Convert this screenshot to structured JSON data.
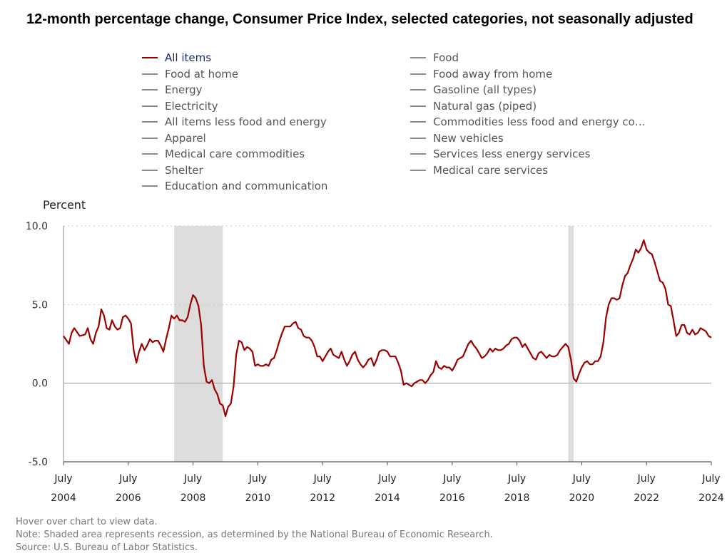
{
  "title": "12-month percentage change, Consumer Price Index, selected categories, not seasonally adjusted",
  "legend": {
    "left": [
      "All items",
      "Food at home",
      "Energy",
      "Electricity",
      "All items less food and energy",
      "Apparel",
      "Medical care commodities",
      "Shelter",
      "Education and communication"
    ],
    "right": [
      "Food",
      "Food away from home",
      "Gasoline (all types)",
      "Natural gas (piped)",
      "Commodities less food and energy com...",
      "New vehicles",
      "Services less energy services",
      "Medical care services"
    ],
    "active": "All items"
  },
  "footer": {
    "hover": "Hover over chart to view data.",
    "note": "Note: Shaded area represents recession, as determined by the National Bureau of Economic Research.",
    "source": "Source: U.S. Bureau of Labor Statistics."
  },
  "chart_data": {
    "type": "line",
    "ylabel": "Percent",
    "ylim": [
      -5.0,
      10.0
    ],
    "yticks": [
      "10.0",
      "5.0",
      "0.0",
      "-5.0"
    ],
    "xlim": [
      "2004-07",
      "2024-07"
    ],
    "xtick_months": [
      "July",
      "July",
      "July",
      "July",
      "July",
      "July",
      "July",
      "July",
      "July",
      "July",
      "July"
    ],
    "xtick_years": [
      "2004",
      "2006",
      "2008",
      "2010",
      "2012",
      "2014",
      "2016",
      "2018",
      "2020",
      "2022",
      "2024"
    ],
    "grid": "horizontal dotted",
    "line_color": "#990000",
    "recession_color": "#dddddd",
    "recessions": [
      [
        "2007-12",
        "2009-06"
      ],
      [
        "2020-02",
        "2020-04"
      ]
    ],
    "series": [
      {
        "name": "All items",
        "points": [
          [
            "2004-07",
            3.0
          ],
          [
            "2004-09",
            2.5
          ],
          [
            "2004-10",
            3.2
          ],
          [
            "2004-11",
            3.5
          ],
          [
            "2005-01",
            3.0
          ],
          [
            "2005-03",
            3.1
          ],
          [
            "2005-04",
            3.5
          ],
          [
            "2005-05",
            2.8
          ],
          [
            "2005-06",
            2.5
          ],
          [
            "2005-07",
            3.2
          ],
          [
            "2005-08",
            3.6
          ],
          [
            "2005-09",
            4.7
          ],
          [
            "2005-10",
            4.3
          ],
          [
            "2005-11",
            3.5
          ],
          [
            "2005-12",
            3.4
          ],
          [
            "2006-01",
            4.0
          ],
          [
            "2006-02",
            3.6
          ],
          [
            "2006-03",
            3.4
          ],
          [
            "2006-04",
            3.5
          ],
          [
            "2006-05",
            4.2
          ],
          [
            "2006-06",
            4.3
          ],
          [
            "2006-07",
            4.1
          ],
          [
            "2006-08",
            3.8
          ],
          [
            "2006-09",
            2.1
          ],
          [
            "2006-10",
            1.3
          ],
          [
            "2006-11",
            2.0
          ],
          [
            "2006-12",
            2.5
          ],
          [
            "2007-01",
            2.1
          ],
          [
            "2007-02",
            2.4
          ],
          [
            "2007-03",
            2.8
          ],
          [
            "2007-04",
            2.6
          ],
          [
            "2007-05",
            2.7
          ],
          [
            "2007-06",
            2.7
          ],
          [
            "2007-07",
            2.4
          ],
          [
            "2007-08",
            2.0
          ],
          [
            "2007-09",
            2.8
          ],
          [
            "2007-10",
            3.5
          ],
          [
            "2007-11",
            4.3
          ],
          [
            "2007-12",
            4.1
          ],
          [
            "2008-01",
            4.3
          ],
          [
            "2008-02",
            4.0
          ],
          [
            "2008-03",
            4.0
          ],
          [
            "2008-04",
            3.9
          ],
          [
            "2008-05",
            4.2
          ],
          [
            "2008-06",
            5.0
          ],
          [
            "2008-07",
            5.6
          ],
          [
            "2008-08",
            5.4
          ],
          [
            "2008-09",
            4.9
          ],
          [
            "2008-10",
            3.7
          ],
          [
            "2008-11",
            1.1
          ],
          [
            "2008-12",
            0.1
          ],
          [
            "2009-01",
            0.0
          ],
          [
            "2009-02",
            0.2
          ],
          [
            "2009-03",
            -0.4
          ],
          [
            "2009-04",
            -0.7
          ],
          [
            "2009-05",
            -1.3
          ],
          [
            "2009-06",
            -1.4
          ],
          [
            "2009-07",
            -2.1
          ],
          [
            "2009-08",
            -1.5
          ],
          [
            "2009-09",
            -1.3
          ],
          [
            "2009-10",
            -0.2
          ],
          [
            "2009-11",
            1.8
          ],
          [
            "2009-12",
            2.7
          ],
          [
            "2010-01",
            2.6
          ],
          [
            "2010-02",
            2.1
          ],
          [
            "2010-03",
            2.3
          ],
          [
            "2010-04",
            2.2
          ],
          [
            "2010-05",
            2.0
          ],
          [
            "2010-06",
            1.1
          ],
          [
            "2010-07",
            1.2
          ],
          [
            "2010-08",
            1.1
          ],
          [
            "2010-09",
            1.1
          ],
          [
            "2010-10",
            1.2
          ],
          [
            "2010-11",
            1.1
          ],
          [
            "2010-12",
            1.5
          ],
          [
            "2011-01",
            1.6
          ],
          [
            "2011-02",
            2.1
          ],
          [
            "2011-03",
            2.7
          ],
          [
            "2011-04",
            3.2
          ],
          [
            "2011-05",
            3.6
          ],
          [
            "2011-06",
            3.6
          ],
          [
            "2011-07",
            3.6
          ],
          [
            "2011-08",
            3.8
          ],
          [
            "2011-09",
            3.9
          ],
          [
            "2011-10",
            3.5
          ],
          [
            "2011-11",
            3.4
          ],
          [
            "2011-12",
            3.0
          ],
          [
            "2012-01",
            2.9
          ],
          [
            "2012-02",
            2.9
          ],
          [
            "2012-03",
            2.7
          ],
          [
            "2012-04",
            2.3
          ],
          [
            "2012-05",
            1.7
          ],
          [
            "2012-06",
            1.7
          ],
          [
            "2012-07",
            1.4
          ],
          [
            "2012-08",
            1.7
          ],
          [
            "2012-09",
            2.0
          ],
          [
            "2012-10",
            2.2
          ],
          [
            "2012-11",
            1.8
          ],
          [
            "2012-12",
            1.7
          ],
          [
            "2013-01",
            1.6
          ],
          [
            "2013-02",
            2.0
          ],
          [
            "2013-03",
            1.5
          ],
          [
            "2013-04",
            1.1
          ],
          [
            "2013-05",
            1.4
          ],
          [
            "2013-06",
            1.8
          ],
          [
            "2013-07",
            2.0
          ],
          [
            "2013-08",
            1.5
          ],
          [
            "2013-09",
            1.2
          ],
          [
            "2013-10",
            1.0
          ],
          [
            "2013-11",
            1.2
          ],
          [
            "2013-12",
            1.5
          ],
          [
            "2014-01",
            1.6
          ],
          [
            "2014-02",
            1.1
          ],
          [
            "2014-03",
            1.5
          ],
          [
            "2014-04",
            2.0
          ],
          [
            "2014-05",
            2.1
          ],
          [
            "2014-06",
            2.1
          ],
          [
            "2014-07",
            2.0
          ],
          [
            "2014-08",
            1.7
          ],
          [
            "2014-09",
            1.7
          ],
          [
            "2014-10",
            1.7
          ],
          [
            "2014-11",
            1.3
          ],
          [
            "2014-12",
            0.8
          ],
          [
            "2015-01",
            -0.1
          ],
          [
            "2015-02",
            0.0
          ],
          [
            "2015-03",
            -0.1
          ],
          [
            "2015-04",
            -0.2
          ],
          [
            "2015-05",
            0.0
          ],
          [
            "2015-06",
            0.1
          ],
          [
            "2015-07",
            0.2
          ],
          [
            "2015-08",
            0.2
          ],
          [
            "2015-09",
            0.0
          ],
          [
            "2015-10",
            0.2
          ],
          [
            "2015-11",
            0.5
          ],
          [
            "2015-12",
            0.7
          ],
          [
            "2016-01",
            1.4
          ],
          [
            "2016-02",
            1.0
          ],
          [
            "2016-03",
            0.9
          ],
          [
            "2016-04",
            1.1
          ],
          [
            "2016-05",
            1.0
          ],
          [
            "2016-06",
            1.0
          ],
          [
            "2016-07",
            0.8
          ],
          [
            "2016-08",
            1.1
          ],
          [
            "2016-09",
            1.5
          ],
          [
            "2016-10",
            1.6
          ],
          [
            "2016-11",
            1.7
          ],
          [
            "2016-12",
            2.1
          ],
          [
            "2017-01",
            2.5
          ],
          [
            "2017-02",
            2.7
          ],
          [
            "2017-03",
            2.4
          ],
          [
            "2017-04",
            2.2
          ],
          [
            "2017-05",
            1.9
          ],
          [
            "2017-06",
            1.6
          ],
          [
            "2017-07",
            1.7
          ],
          [
            "2017-08",
            1.9
          ],
          [
            "2017-09",
            2.2
          ],
          [
            "2017-10",
            2.0
          ],
          [
            "2017-11",
            2.2
          ],
          [
            "2017-12",
            2.1
          ],
          [
            "2018-01",
            2.1
          ],
          [
            "2018-02",
            2.2
          ],
          [
            "2018-03",
            2.4
          ],
          [
            "2018-04",
            2.5
          ],
          [
            "2018-05",
            2.8
          ],
          [
            "2018-06",
            2.9
          ],
          [
            "2018-07",
            2.9
          ],
          [
            "2018-08",
            2.7
          ],
          [
            "2018-09",
            2.3
          ],
          [
            "2018-10",
            2.5
          ],
          [
            "2018-11",
            2.2
          ],
          [
            "2018-12",
            1.9
          ],
          [
            "2019-01",
            1.6
          ],
          [
            "2019-02",
            1.5
          ],
          [
            "2019-03",
            1.9
          ],
          [
            "2019-04",
            2.0
          ],
          [
            "2019-05",
            1.8
          ],
          [
            "2019-06",
            1.6
          ],
          [
            "2019-07",
            1.8
          ],
          [
            "2019-08",
            1.7
          ],
          [
            "2019-09",
            1.7
          ],
          [
            "2019-10",
            1.8
          ],
          [
            "2019-11",
            2.1
          ],
          [
            "2019-12",
            2.3
          ],
          [
            "2020-01",
            2.5
          ],
          [
            "2020-02",
            2.3
          ],
          [
            "2020-03",
            1.5
          ],
          [
            "2020-04",
            0.3
          ],
          [
            "2020-05",
            0.1
          ],
          [
            "2020-06",
            0.6
          ],
          [
            "2020-07",
            1.0
          ],
          [
            "2020-08",
            1.3
          ],
          [
            "2020-09",
            1.4
          ],
          [
            "2020-10",
            1.2
          ],
          [
            "2020-11",
            1.2
          ],
          [
            "2020-12",
            1.4
          ],
          [
            "2021-01",
            1.4
          ],
          [
            "2021-02",
            1.7
          ],
          [
            "2021-03",
            2.6
          ],
          [
            "2021-04",
            4.2
          ],
          [
            "2021-05",
            5.0
          ],
          [
            "2021-06",
            5.4
          ],
          [
            "2021-07",
            5.4
          ],
          [
            "2021-08",
            5.3
          ],
          [
            "2021-09",
            5.4
          ],
          [
            "2021-10",
            6.2
          ],
          [
            "2021-11",
            6.8
          ],
          [
            "2021-12",
            7.0
          ],
          [
            "2022-01",
            7.5
          ],
          [
            "2022-02",
            7.9
          ],
          [
            "2022-03",
            8.5
          ],
          [
            "2022-04",
            8.3
          ],
          [
            "2022-05",
            8.6
          ],
          [
            "2022-06",
            9.1
          ],
          [
            "2022-07",
            8.5
          ],
          [
            "2022-08",
            8.3
          ],
          [
            "2022-09",
            8.2
          ],
          [
            "2022-10",
            7.7
          ],
          [
            "2022-11",
            7.1
          ],
          [
            "2022-12",
            6.5
          ],
          [
            "2023-01",
            6.4
          ],
          [
            "2023-02",
            6.0
          ],
          [
            "2023-03",
            5.0
          ],
          [
            "2023-04",
            4.9
          ],
          [
            "2023-05",
            4.0
          ],
          [
            "2023-06",
            3.0
          ],
          [
            "2023-07",
            3.2
          ],
          [
            "2023-08",
            3.7
          ],
          [
            "2023-09",
            3.7
          ],
          [
            "2023-10",
            3.2
          ],
          [
            "2023-11",
            3.1
          ],
          [
            "2023-12",
            3.4
          ],
          [
            "2024-01",
            3.1
          ],
          [
            "2024-02",
            3.2
          ],
          [
            "2024-03",
            3.5
          ],
          [
            "2024-04",
            3.4
          ],
          [
            "2024-05",
            3.3
          ],
          [
            "2024-06",
            3.0
          ],
          [
            "2024-07",
            2.9
          ]
        ]
      }
    ]
  }
}
